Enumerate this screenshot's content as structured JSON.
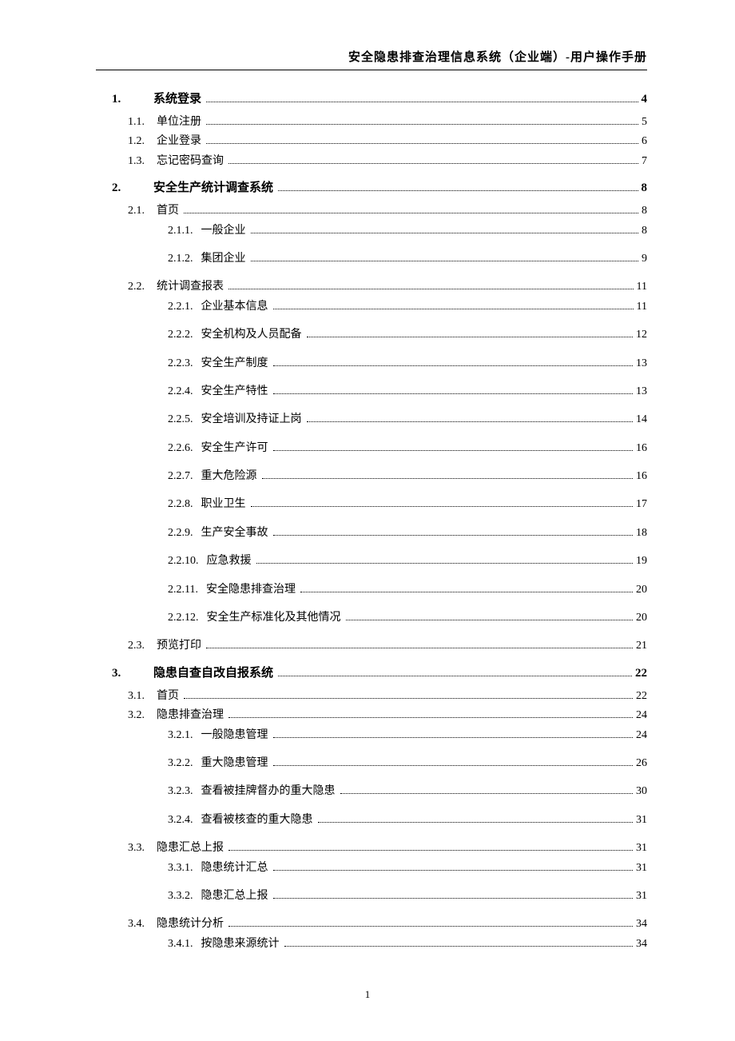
{
  "header": "安全隐患排查治理信息系统（企业端）-用户操作手册",
  "page_number": "1",
  "toc": [
    {
      "level": 1,
      "num": "1.",
      "title": "系统登录",
      "page": "4"
    },
    {
      "level": 2,
      "num": "1.1.",
      "title": "单位注册",
      "page": "5"
    },
    {
      "level": 2,
      "num": "1.2.",
      "title": "企业登录",
      "page": "6"
    },
    {
      "level": 2,
      "num": "1.3.",
      "title": "忘记密码查询",
      "page": "7"
    },
    {
      "level": 1,
      "num": "2.",
      "title": "安全生产统计调查系统",
      "page": "8"
    },
    {
      "level": 2,
      "num": "2.1.",
      "title": "首页",
      "page": "8"
    },
    {
      "level": 3,
      "num": "2.1.1.",
      "title": "一般企业",
      "page": "8"
    },
    {
      "level": 3,
      "num": "2.1.2.",
      "title": "集团企业",
      "page": "9"
    },
    {
      "level": 2,
      "num": "2.2.",
      "title": "统计调查报表",
      "page": "11"
    },
    {
      "level": 3,
      "num": "2.2.1.",
      "title": "企业基本信息",
      "page": "11"
    },
    {
      "level": 3,
      "num": "2.2.2.",
      "title": "安全机构及人员配备",
      "page": "12"
    },
    {
      "level": 3,
      "num": "2.2.3.",
      "title": "安全生产制度",
      "page": "13"
    },
    {
      "level": 3,
      "num": "2.2.4.",
      "title": "安全生产特性",
      "page": "13"
    },
    {
      "level": 3,
      "num": "2.2.5.",
      "title": "安全培训及持证上岗",
      "page": "14"
    },
    {
      "level": 3,
      "num": "2.2.6.",
      "title": "安全生产许可",
      "page": "16"
    },
    {
      "level": 3,
      "num": "2.2.7.",
      "title": "重大危险源",
      "page": "16"
    },
    {
      "level": 3,
      "num": "2.2.8.",
      "title": "职业卫生",
      "page": "17"
    },
    {
      "level": 3,
      "num": "2.2.9.",
      "title": "生产安全事故",
      "page": "18"
    },
    {
      "level": 3,
      "num": "2.2.10.",
      "title": "应急救援",
      "page": "19"
    },
    {
      "level": 3,
      "num": "2.2.11.",
      "title": "安全隐患排查治理",
      "page": "20"
    },
    {
      "level": 3,
      "num": "2.2.12.",
      "title": "安全生产标准化及其他情况",
      "page": "20"
    },
    {
      "level": 2,
      "num": "2.3.",
      "title": "预览打印",
      "page": "21"
    },
    {
      "level": 1,
      "num": "3.",
      "title": "隐患自查自改自报系统",
      "page": "22"
    },
    {
      "level": 2,
      "num": "3.1.",
      "title": "首页",
      "page": "22"
    },
    {
      "level": 2,
      "num": "3.2.",
      "title": "隐患排查治理",
      "page": "24"
    },
    {
      "level": 3,
      "num": "3.2.1.",
      "title": "一般隐患管理",
      "page": "24"
    },
    {
      "level": 3,
      "num": "3.2.2.",
      "title": "重大隐患管理",
      "page": "26"
    },
    {
      "level": 3,
      "num": "3.2.3.",
      "title": "查看被挂牌督办的重大隐患",
      "page": "30"
    },
    {
      "level": 3,
      "num": "3.2.4.",
      "title": "查看被核查的重大隐患",
      "page": "31"
    },
    {
      "level": 2,
      "num": "3.3.",
      "title": "隐患汇总上报",
      "page": "31"
    },
    {
      "level": 3,
      "num": "3.3.1.",
      "title": "隐患统计汇总",
      "page": "31"
    },
    {
      "level": 3,
      "num": "3.3.2.",
      "title": "隐患汇总上报",
      "page": "31"
    },
    {
      "level": 2,
      "num": "3.4.",
      "title": "隐患统计分析",
      "page": "34"
    },
    {
      "level": 3,
      "num": "3.4.1.",
      "title": "按隐患来源统计",
      "page": "34"
    }
  ]
}
